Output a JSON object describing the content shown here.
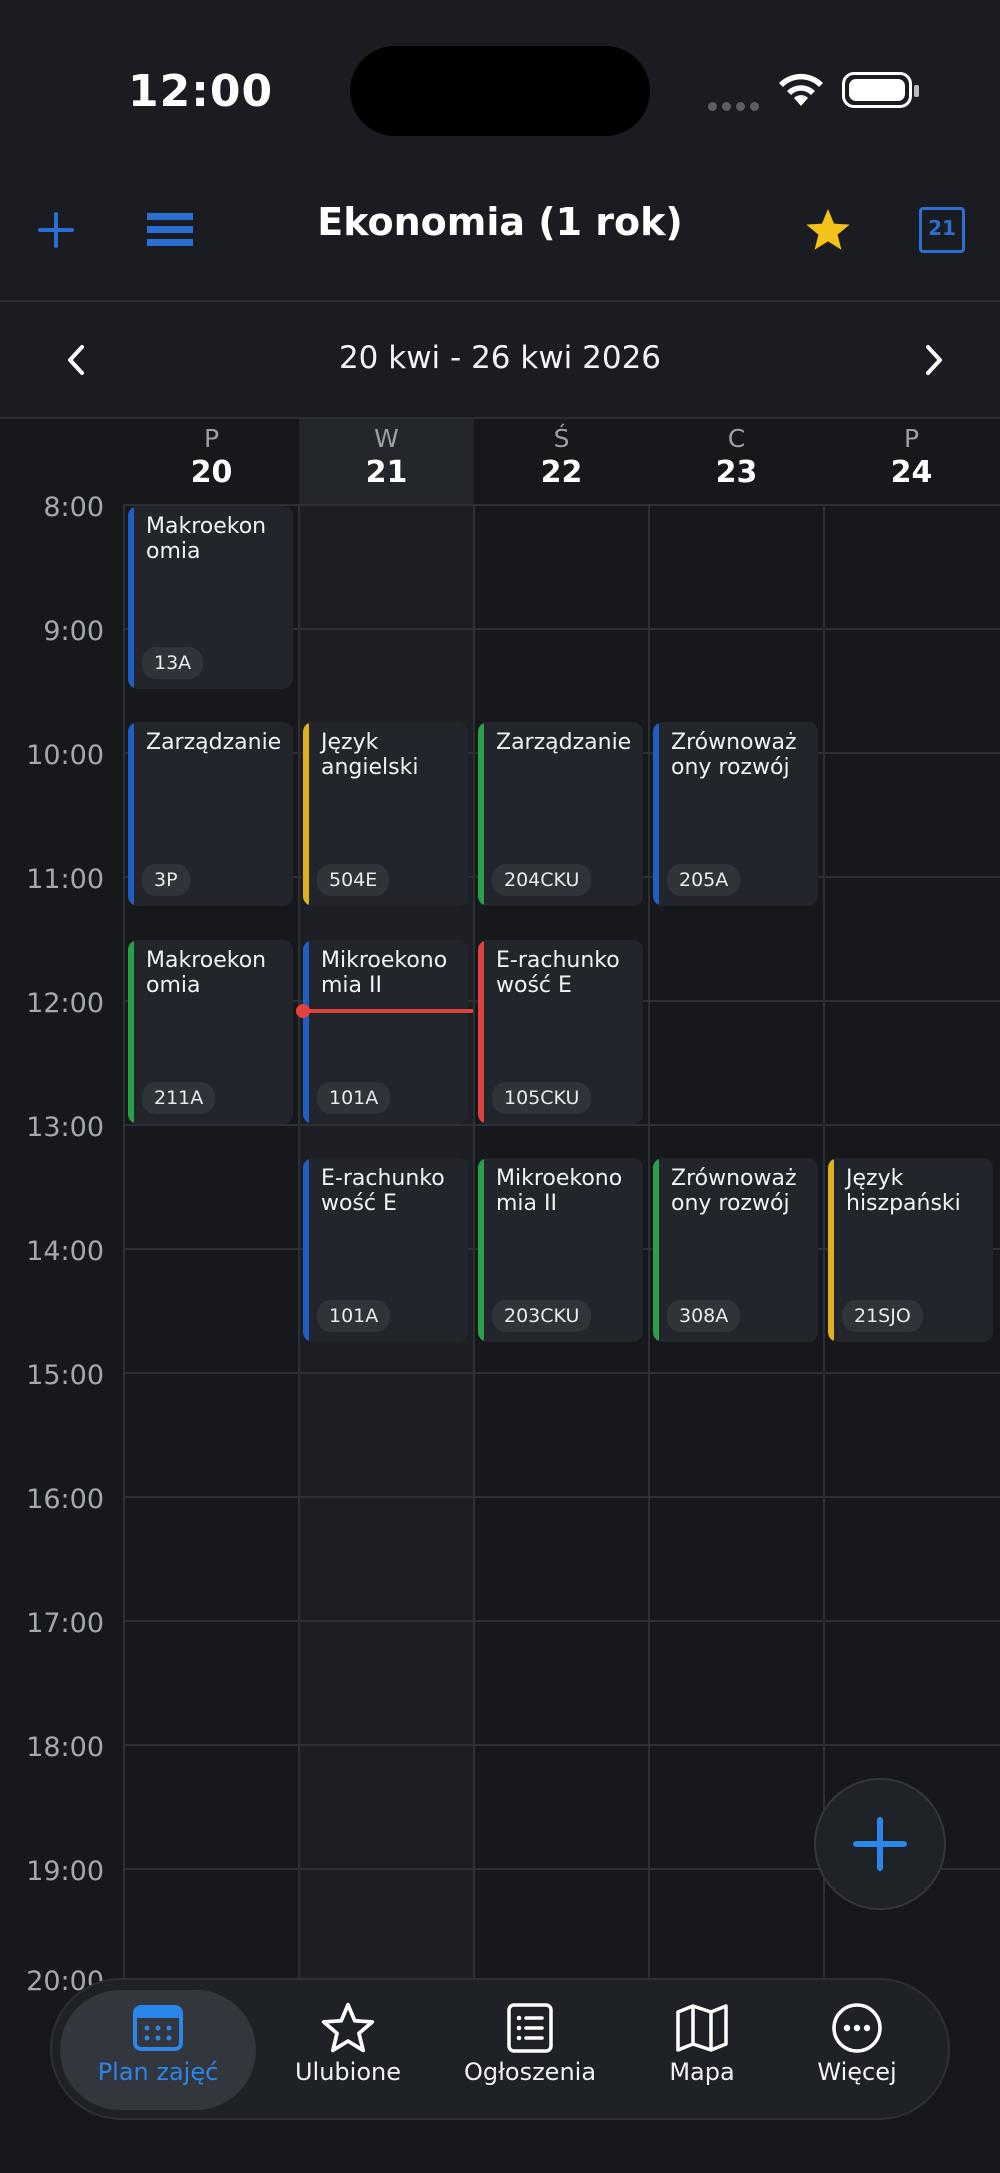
{
  "status_bar": {
    "time": "12:00"
  },
  "header": {
    "title": "Ekonomia (1 rok)",
    "calendar_day": "21"
  },
  "week": {
    "range": "20 kwi - 26 kwi 2026"
  },
  "days": [
    {
      "dow": "P",
      "num": "20"
    },
    {
      "dow": "W",
      "num": "21"
    },
    {
      "dow": "Ś",
      "num": "22"
    },
    {
      "dow": "C",
      "num": "23"
    },
    {
      "dow": "P",
      "num": "24"
    }
  ],
  "hours": [
    "8:00",
    "9:00",
    "10:00",
    "11:00",
    "12:00",
    "13:00",
    "14:00",
    "15:00",
    "16:00",
    "17:00",
    "18:00",
    "19:00",
    "20:00"
  ],
  "events": [
    {
      "title": "Makroekon omia",
      "room": "13A"
    },
    {
      "title": "Zarządzanie",
      "room": "3P"
    },
    {
      "title": "Język angielski",
      "room": "504E"
    },
    {
      "title": "Zarządzanie",
      "room": "204CKU"
    },
    {
      "title": "Zrównoważ ony rozwój",
      "room": "205A"
    },
    {
      "title": "Makroekon omia",
      "room": "211A"
    },
    {
      "title": "Mikroekono mia II",
      "room": "101A"
    },
    {
      "title": "E-rachunko wość E",
      "room": "105CKU"
    },
    {
      "title": "E-rachunko wość E",
      "room": "101A"
    },
    {
      "title": "Mikroekono mia II",
      "room": "203CKU"
    },
    {
      "title": "Zrównoważ ony rozwój",
      "room": "308A"
    },
    {
      "title": "Język hiszpański",
      "room": "21SJO"
    }
  ],
  "colors": {
    "blue": "#1f5fc4",
    "yellow": "#e0b11f",
    "green": "#2aa146",
    "red": "#e0433d",
    "accent": "#2a86e8",
    "star": "#f5c21b"
  },
  "tabs": [
    {
      "label": "Plan zajęć",
      "icon": "calendar-icon"
    },
    {
      "label": "Ulubione",
      "icon": "star-outline-icon"
    },
    {
      "label": "Ogłoszenia",
      "icon": "list-icon"
    },
    {
      "label": "Mapa",
      "icon": "map-icon"
    },
    {
      "label": "Więcej",
      "icon": "more-icon"
    }
  ]
}
